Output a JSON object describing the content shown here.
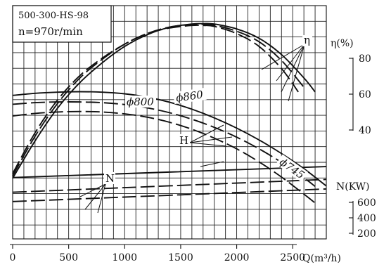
{
  "chart_data": {
    "type": "line",
    "model_box": {
      "model": "500-300-HS-98",
      "speed": "n=970r/min"
    },
    "x_axis": {
      "label": "Q(m³/h)",
      "range": [
        0,
        2800
      ],
      "ticks": [
        "0",
        "500",
        "1000",
        "1500",
        "2000",
        "2500"
      ]
    },
    "eta_axis": {
      "label": "η(%)",
      "ticks": [
        "80",
        "60",
        "40"
      ]
    },
    "power_axis": {
      "label": "N(KW)",
      "ticks": [
        "600",
        "400",
        "200"
      ]
    },
    "curve_labels": {
      "eta": "η",
      "head": "H",
      "power": "N",
      "d860": "ϕ860",
      "d800": "ϕ800",
      "d745": "ϕ745"
    },
    "y_units": "relative level, 0 = chart bottom, 100 = chart top",
    "series": [
      {
        "name": "η ϕ860",
        "style": "solid",
        "x": [
          0,
          200,
          400,
          600,
          800,
          1000,
          1200,
          1400,
          1600,
          1700,
          1800,
          2000,
          2200,
          2400,
          2600,
          2700
        ],
        "y": [
          26,
          42,
          56,
          67,
          75.5,
          82.5,
          87.5,
          90.7,
          92.1,
          92.3,
          92.1,
          90,
          86,
          79,
          69,
          63
        ]
      },
      {
        "name": "η ϕ800",
        "style": "dashed",
        "x": [
          0,
          200,
          400,
          600,
          800,
          1000,
          1200,
          1400,
          1600,
          1700,
          1800,
          2000,
          2200,
          2400,
          2600
        ],
        "y": [
          27,
          44,
          58,
          69,
          77,
          83.5,
          88,
          90.8,
          91.9,
          92,
          91.6,
          89,
          84.5,
          76.5,
          65
        ]
      },
      {
        "name": "η ϕ745",
        "style": "dashed",
        "x": [
          0,
          200,
          400,
          600,
          800,
          1000,
          1200,
          1400,
          1600,
          1700,
          1800,
          2000,
          2200,
          2400,
          2550
        ],
        "y": [
          28,
          45.5,
          59.5,
          70,
          77.5,
          83.5,
          88,
          90.4,
          91.5,
          91.5,
          91.1,
          88,
          82.5,
          73,
          63
        ]
      },
      {
        "name": "H ϕ860",
        "style": "solid",
        "x": [
          0,
          200,
          400,
          600,
          800,
          1000,
          1200,
          1400,
          1600,
          1800,
          2000,
          2200,
          2400,
          2600,
          2800
        ],
        "y": [
          61.5,
          62.4,
          62.9,
          63.1,
          62.9,
          62.2,
          60.8,
          58.6,
          55.6,
          51.9,
          47.5,
          42.4,
          36.6,
          30.1,
          22.7
        ]
      },
      {
        "name": "H ϕ800",
        "style": "dashed",
        "x": [
          0,
          200,
          400,
          600,
          800,
          1000,
          1200,
          1400,
          1600,
          1800,
          2000,
          2200,
          2400,
          2600,
          2700
        ],
        "y": [
          57.7,
          58.4,
          58.7,
          58.7,
          58.4,
          57.6,
          56.2,
          54.1,
          51.3,
          47.8,
          43.6,
          38.6,
          32.8,
          26.2,
          22.5
        ]
      },
      {
        "name": "H ϕ745",
        "style": "dashed",
        "x": [
          0,
          200,
          400,
          600,
          800,
          1000,
          1200,
          1400,
          1600,
          1800,
          2000,
          2200,
          2400,
          2600,
          2700
        ],
        "y": [
          52.7,
          53.8,
          54.4,
          54.6,
          54.4,
          53.6,
          52.2,
          50,
          47,
          43.2,
          38.6,
          33,
          26.5,
          19.2,
          15.4
        ]
      },
      {
        "name": "N ϕ860",
        "style": "solid",
        "x": [
          0,
          2800
        ],
        "y": [
          26.3,
          31
        ]
      },
      {
        "name": "N ϕ800",
        "style": "dashed",
        "x": [
          0,
          2800
        ],
        "y": [
          20,
          25.5
        ]
      },
      {
        "name": "N ϕ745",
        "style": "dashed",
        "x": [
          0,
          2800
        ],
        "y": [
          16,
          21.4
        ]
      }
    ]
  }
}
